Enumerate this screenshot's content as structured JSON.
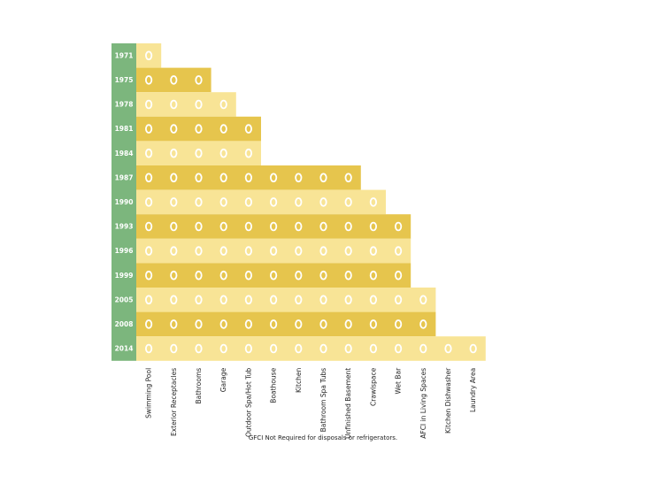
{
  "chart_data": {
    "type": "table",
    "title": "",
    "rows": [
      "1971",
      "1975",
      "1978",
      "1981",
      "1984",
      "1987",
      "1990",
      "1993",
      "1996",
      "1999",
      "2005",
      "2008",
      "2014"
    ],
    "columns": [
      "Swimming Pool",
      "Exterior Receptacles",
      "Bathrooms",
      "Garage",
      "Outdoor Spa/Hot Tub",
      "Boathouse",
      "Kitchen",
      "Bathroom Spa Tubs",
      "Unfinished Basement",
      "Crawlspace",
      "Wet Bar",
      "AFCI in Living Spaces",
      "Kitchen Dishwasher",
      "Laundry Area"
    ],
    "required_column_count": [
      1,
      3,
      4,
      5,
      5,
      9,
      10,
      11,
      11,
      11,
      12,
      12,
      14
    ],
    "marker": "O",
    "footnote": "GFCI Not Required for disposals or refrigerators."
  },
  "colors": {
    "year_bg": "#7cb67d",
    "row_dark": "#e6c54d",
    "row_light": "#f8e496",
    "marker": "#ffffff"
  }
}
